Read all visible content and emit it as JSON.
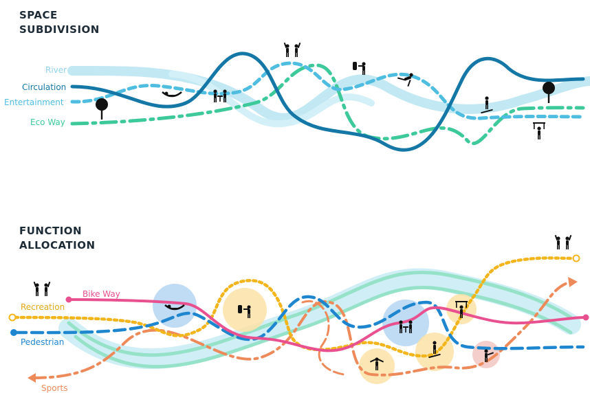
{
  "section1": {
    "title_line1": "SPACE",
    "title_line2": "SUBDIVISION",
    "labels": {
      "river": "River",
      "circulation": "Circulation",
      "entertainment": "Entertainment",
      "eco_way": "Eco Way"
    }
  },
  "section2": {
    "title_line1": "FUNCTION",
    "title_line2": "ALLOCATION",
    "labels": {
      "bike_way": "Bike Way",
      "recreation": "Recreation",
      "pedestrian": "Pedestrian",
      "sports": "Sports"
    }
  },
  "colors": {
    "river": "#aee0ef",
    "circulation": "#1577a6",
    "entertainment": "#4fbde0",
    "eco_way": "#3ec99b",
    "bike_way": "#e8508f",
    "recreation": "#f2b51c",
    "pedestrian": "#1e86cf",
    "sports": "#ee8a5a",
    "river_band": "#cfeef6"
  }
}
